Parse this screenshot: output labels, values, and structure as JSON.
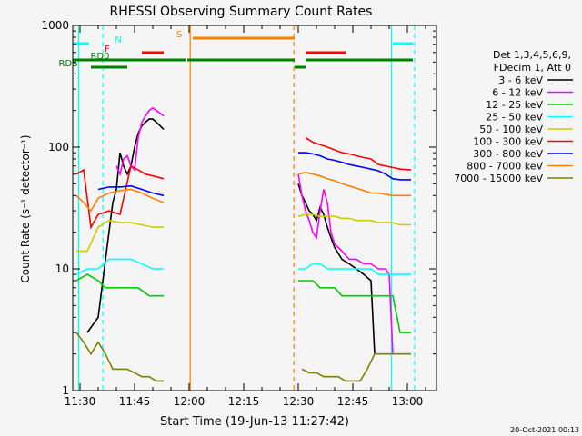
{
  "chart_data": {
    "type": "line",
    "title": "RHESSI Observing Summary Count Rates",
    "xlabel": "Start Time (19-Jun-13 11:27:42)",
    "ylabel": "Count Rate (s⁻¹ detector⁻¹)",
    "yscale": "log",
    "ylim": [
      1,
      1000
    ],
    "xlim_minutes": [
      688,
      788
    ],
    "x_ticks": [
      {
        "t": 690,
        "label": "11:30"
      },
      {
        "t": 705,
        "label": "11:45"
      },
      {
        "t": 720,
        "label": "12:00"
      },
      {
        "t": 735,
        "label": "12:15"
      },
      {
        "t": 750,
        "label": "12:30"
      },
      {
        "t": 765,
        "label": "12:45"
      },
      {
        "t": 780,
        "label": "13:00"
      }
    ],
    "y_ticks": [
      {
        "v": 1,
        "label": "1"
      },
      {
        "v": 10,
        "label": "10"
      },
      {
        "v": 100,
        "label": "100"
      },
      {
        "v": 1000,
        "label": "1000"
      }
    ],
    "legend_header": [
      "Det 1,3,4,5,6,9,",
      "FDecim 1, Att 0"
    ],
    "legend_position": "right",
    "series": [
      {
        "name": "3 - 6 keV",
        "color": "#000000",
        "points": [
          [
            692,
            3
          ],
          [
            695,
            4
          ],
          [
            699,
            35
          ],
          [
            700,
            45
          ],
          [
            701,
            90
          ],
          [
            702,
            70
          ],
          [
            703,
            60
          ],
          [
            704,
            70
          ],
          [
            705,
            100
          ],
          [
            706,
            130
          ],
          [
            707,
            150
          ],
          [
            708,
            160
          ],
          [
            709,
            170
          ],
          [
            710,
            170
          ],
          [
            711,
            160
          ],
          [
            712,
            150
          ],
          [
            713,
            140
          ],
          [
            750,
            50
          ],
          [
            751,
            40
          ],
          [
            752,
            35
          ],
          [
            753,
            30
          ],
          [
            754,
            28
          ],
          [
            755,
            25
          ],
          [
            756,
            32
          ],
          [
            757,
            28
          ],
          [
            758,
            22
          ],
          [
            759,
            18
          ],
          [
            760,
            15
          ],
          [
            762,
            12
          ],
          [
            764,
            11
          ],
          [
            766,
            10
          ],
          [
            768,
            9
          ],
          [
            770,
            8
          ],
          [
            771,
            2
          ]
        ]
      },
      {
        "name": "6 - 12 keV",
        "color": "#ff00ff",
        "points": [
          [
            700,
            70
          ],
          [
            701,
            60
          ],
          [
            702,
            80
          ],
          [
            703,
            85
          ],
          [
            704,
            70
          ],
          [
            705,
            65
          ],
          [
            706,
            120
          ],
          [
            707,
            160
          ],
          [
            708,
            180
          ],
          [
            709,
            200
          ],
          [
            710,
            210
          ],
          [
            711,
            200
          ],
          [
            712,
            190
          ],
          [
            713,
            180
          ],
          [
            750,
            60
          ],
          [
            751,
            40
          ],
          [
            752,
            30
          ],
          [
            753,
            25
          ],
          [
            754,
            20
          ],
          [
            755,
            18
          ],
          [
            756,
            30
          ],
          [
            757,
            45
          ],
          [
            758,
            35
          ],
          [
            759,
            20
          ],
          [
            760,
            16
          ],
          [
            762,
            14
          ],
          [
            764,
            12
          ],
          [
            766,
            12
          ],
          [
            768,
            11
          ],
          [
            770,
            11
          ],
          [
            772,
            10
          ],
          [
            774,
            10
          ],
          [
            775,
            9
          ],
          [
            776,
            2
          ]
        ]
      },
      {
        "name": "12 - 25 keV",
        "color": "#00cc00",
        "points": [
          [
            689,
            8
          ],
          [
            692,
            9
          ],
          [
            695,
            8
          ],
          [
            697,
            7
          ],
          [
            700,
            7
          ],
          [
            703,
            7
          ],
          [
            706,
            7
          ],
          [
            709,
            6
          ],
          [
            713,
            6
          ],
          [
            750,
            8
          ],
          [
            752,
            8
          ],
          [
            754,
            8
          ],
          [
            756,
            7
          ],
          [
            758,
            7
          ],
          [
            760,
            7
          ],
          [
            762,
            6
          ],
          [
            764,
            6
          ],
          [
            766,
            6
          ],
          [
            768,
            6
          ],
          [
            770,
            6
          ],
          [
            772,
            6
          ],
          [
            774,
            6
          ],
          [
            776,
            6
          ],
          [
            778,
            3
          ],
          [
            781,
            3
          ]
        ]
      },
      {
        "name": "25 - 50 keV",
        "color": "#00ffff",
        "points": [
          [
            689,
            9
          ],
          [
            692,
            10
          ],
          [
            695,
            10
          ],
          [
            698,
            12
          ],
          [
            701,
            12
          ],
          [
            704,
            12
          ],
          [
            707,
            11
          ],
          [
            710,
            10
          ],
          [
            713,
            10
          ],
          [
            750,
            10
          ],
          [
            752,
            10
          ],
          [
            754,
            11
          ],
          [
            756,
            11
          ],
          [
            758,
            10
          ],
          [
            760,
            10
          ],
          [
            762,
            10
          ],
          [
            764,
            10
          ],
          [
            766,
            10
          ],
          [
            768,
            10
          ],
          [
            770,
            10
          ],
          [
            772,
            9
          ],
          [
            774,
            9
          ],
          [
            776,
            9
          ],
          [
            778,
            9
          ],
          [
            781,
            9
          ]
        ]
      },
      {
        "name": "50 - 100 keV",
        "color": "#cccc00",
        "points": [
          [
            689,
            14
          ],
          [
            692,
            14
          ],
          [
            695,
            22
          ],
          [
            698,
            25
          ],
          [
            701,
            24
          ],
          [
            704,
            24
          ],
          [
            707,
            23
          ],
          [
            710,
            22
          ],
          [
            713,
            22
          ],
          [
            750,
            27
          ],
          [
            752,
            28
          ],
          [
            754,
            28
          ],
          [
            756,
            27
          ],
          [
            758,
            27
          ],
          [
            760,
            27
          ],
          [
            762,
            26
          ],
          [
            764,
            26
          ],
          [
            766,
            25
          ],
          [
            768,
            25
          ],
          [
            770,
            25
          ],
          [
            772,
            24
          ],
          [
            774,
            24
          ],
          [
            776,
            24
          ],
          [
            778,
            23
          ],
          [
            781,
            23
          ]
        ]
      },
      {
        "name": "100 - 300 keV",
        "color": "#ff0000",
        "points": [
          [
            689,
            60
          ],
          [
            691,
            65
          ],
          [
            693,
            22
          ],
          [
            695,
            28
          ],
          [
            698,
            30
          ],
          [
            701,
            28
          ],
          [
            704,
            70
          ],
          [
            706,
            65
          ],
          [
            708,
            60
          ],
          [
            710,
            58
          ],
          [
            712,
            56
          ],
          [
            713,
            55
          ],
          [
            752,
            120
          ],
          [
            754,
            110
          ],
          [
            756,
            105
          ],
          [
            758,
            100
          ],
          [
            760,
            95
          ],
          [
            762,
            90
          ],
          [
            764,
            88
          ],
          [
            766,
            85
          ],
          [
            768,
            82
          ],
          [
            770,
            80
          ],
          [
            772,
            72
          ],
          [
            774,
            70
          ],
          [
            776,
            68
          ],
          [
            778,
            66
          ],
          [
            781,
            65
          ]
        ]
      },
      {
        "name": "300 - 800 keV",
        "color": "#0000ff",
        "points": [
          [
            695,
            45
          ],
          [
            698,
            47
          ],
          [
            701,
            47
          ],
          [
            704,
            48
          ],
          [
            707,
            45
          ],
          [
            710,
            42
          ],
          [
            713,
            40
          ],
          [
            750,
            90
          ],
          [
            752,
            90
          ],
          [
            754,
            88
          ],
          [
            756,
            85
          ],
          [
            758,
            80
          ],
          [
            760,
            78
          ],
          [
            762,
            75
          ],
          [
            764,
            72
          ],
          [
            766,
            70
          ],
          [
            768,
            68
          ],
          [
            770,
            66
          ],
          [
            772,
            64
          ],
          [
            774,
            60
          ],
          [
            776,
            55
          ],
          [
            778,
            54
          ],
          [
            781,
            54
          ]
        ]
      },
      {
        "name": "800 - 7000 keV",
        "color": "#ff8000",
        "points": [
          [
            689,
            40
          ],
          [
            691,
            35
          ],
          [
            693,
            30
          ],
          [
            695,
            38
          ],
          [
            698,
            42
          ],
          [
            701,
            44
          ],
          [
            704,
            45
          ],
          [
            707,
            42
          ],
          [
            710,
            38
          ],
          [
            713,
            35
          ],
          [
            750,
            60
          ],
          [
            752,
            62
          ],
          [
            754,
            60
          ],
          [
            756,
            58
          ],
          [
            758,
            55
          ],
          [
            760,
            53
          ],
          [
            762,
            50
          ],
          [
            764,
            48
          ],
          [
            766,
            46
          ],
          [
            768,
            44
          ],
          [
            770,
            42
          ],
          [
            772,
            42
          ],
          [
            774,
            41
          ],
          [
            776,
            40
          ],
          [
            778,
            40
          ],
          [
            781,
            40
          ]
        ]
      },
      {
        "name": "7000 - 15000 keV",
        "color": "#808000",
        "points": [
          [
            689,
            3
          ],
          [
            691,
            2.5
          ],
          [
            693,
            2
          ],
          [
            695,
            2.5
          ],
          [
            697,
            2
          ],
          [
            699,
            1.5
          ],
          [
            701,
            1.5
          ],
          [
            703,
            1.5
          ],
          [
            705,
            1.4
          ],
          [
            707,
            1.3
          ],
          [
            709,
            1.3
          ],
          [
            711,
            1.2
          ],
          [
            713,
            1.2
          ],
          [
            751,
            1.5
          ],
          [
            753,
            1.4
          ],
          [
            755,
            1.4
          ],
          [
            757,
            1.3
          ],
          [
            759,
            1.3
          ],
          [
            761,
            1.3
          ],
          [
            763,
            1.2
          ],
          [
            765,
            1.2
          ],
          [
            767,
            1.2
          ],
          [
            769,
            1.5
          ],
          [
            771,
            2
          ],
          [
            773,
            2
          ],
          [
            775,
            2
          ],
          [
            777,
            2
          ],
          [
            779,
            2
          ],
          [
            781,
            2
          ]
        ]
      }
    ],
    "flags": [
      {
        "label": "N",
        "color": "#00ffff",
        "segments": [
          [
            688,
            692.5
          ],
          [
            776,
            781.5
          ]
        ]
      },
      {
        "label": "S",
        "color": "#ff8000",
        "segments": [
          [
            721,
            749
          ]
        ]
      },
      {
        "label": "F",
        "color": "#ff0000",
        "segments": [
          [
            707,
            713
          ],
          [
            752,
            763
          ]
        ]
      },
      {
        "label": "RD0",
        "color": "#008000",
        "segments": [
          [
            688,
            719
          ],
          [
            719.5,
            749
          ],
          [
            752,
            781.5
          ]
        ]
      },
      {
        "label": "RDS",
        "color": "#008000",
        "segments": [
          [
            693,
            703
          ],
          [
            749,
            752
          ]
        ]
      }
    ],
    "vlines": [
      {
        "t": 689.6,
        "color": "#00ffff",
        "style": "solid"
      },
      {
        "t": 696.3,
        "color": "#00ffff",
        "style": "dashed"
      },
      {
        "t": 720.3,
        "color": "#ff8000",
        "style": "solid"
      },
      {
        "t": 748.8,
        "color": "#ff8000",
        "style": "dashed"
      },
      {
        "t": 775.6,
        "color": "#00ffff",
        "style": "solid"
      },
      {
        "t": 782.0,
        "color": "#00ffff",
        "style": "dashed"
      }
    ],
    "timestamp": "20-Oct-2021 00:13"
  }
}
